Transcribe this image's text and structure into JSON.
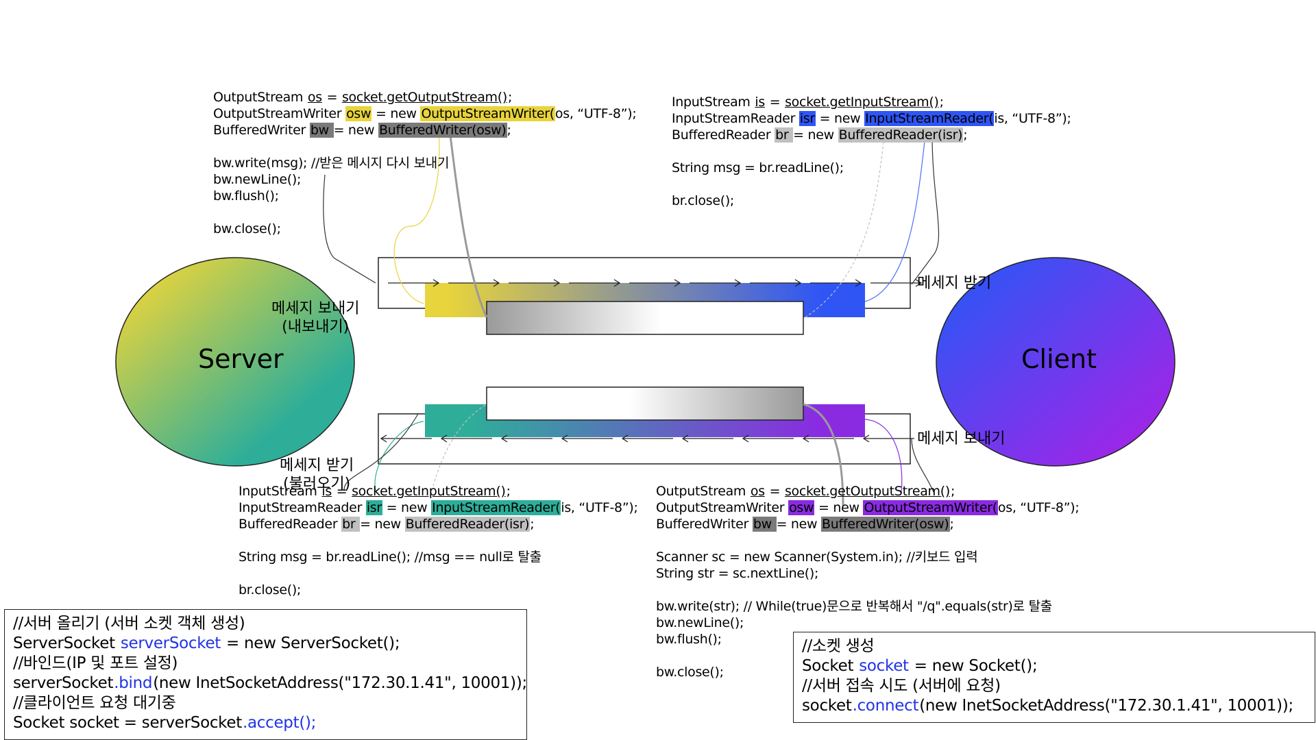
{
  "nodes": {
    "server": "Server",
    "client": "Client"
  },
  "labels": {
    "server_send": [
      "메세지 보내기",
      "(내보내기)"
    ],
    "server_recv": [
      "메세지 받기",
      "(불러오기)"
    ],
    "client_recv": "메세지 받기",
    "client_send": "메세지 보내기"
  },
  "server_send_code": [
    "OutputStream os = socket.getOutputStream();",
    "OutputStreamWriter osw = new OutputStreamWriter(os, “UTF-8”);",
    "BufferedWriter bw = new BufferedWriter(osw);",
    "",
    "bw.write(msg); //받은 메시지 다시 보내기",
    "bw.newLine();",
    "bw.flush();",
    "",
    "bw.close();"
  ],
  "client_recv_code": [
    "InputStream is = socket.getInputStream();",
    "InputStreamReader isr = new InputStreamReader(is, “UTF-8”);",
    "BufferedReader br = new BufferedReader(isr);",
    "",
    "String msg = br.readLine();",
    "",
    "br.close();"
  ],
  "server_recv_code": [
    "InputStream is = socket.getInputStream();",
    "InputStreamReader isr = new InputStreamReader(is, “UTF-8”);",
    "BufferedReader br = new BufferedReader(isr);",
    "",
    "String msg = br.readLine(); //msg == null로 탈출",
    "",
    "br.close();"
  ],
  "client_send_code": [
    "OutputStream os = socket.getOutputStream();",
    "OutputStreamWriter osw = new OutputStreamWriter(os, “UTF-8”);",
    "BufferedWriter bw = new BufferedWriter(osw);",
    "",
    "Scanner sc = new Scanner(System.in); //키보드 입력",
    "String str = sc.nextLine();",
    "",
    "bw.write(str); // While(true)문으로 반복해서 \"/q\".equals(str)로 탈출",
    "bw.newLine();",
    "bw.flush();",
    "",
    "bw.close();"
  ],
  "server_box": [
    "//서버 올리기 (서버 소켓 객체 생성)",
    "ServerSocket serverSocket = new ServerSocket();",
    "//바인드(IP 및 포트 설정)",
    "serverSocket.bind(new InetSocketAddress(\"172.30.1.41\", 10001));",
    "//클라이언트 요청 대기중",
    "Socket socket = serverSocket.accept();"
  ],
  "client_box": [
    "//소켓 생성",
    "Socket socket = new Socket();",
    "//서버 접속 시도 (서버에 요청)",
    "socket.connect(new InetSocketAddress(\"172.30.1.41\", 10001));"
  ],
  "colors": {
    "yellow": "#e8d43c",
    "blue": "#2f55f5",
    "teal": "#2eae99",
    "purple": "#8a2be2",
    "gray_dark": "#7a7a7a",
    "gray_light": "#c0c0c0",
    "keyword": "#1f33e6"
  }
}
